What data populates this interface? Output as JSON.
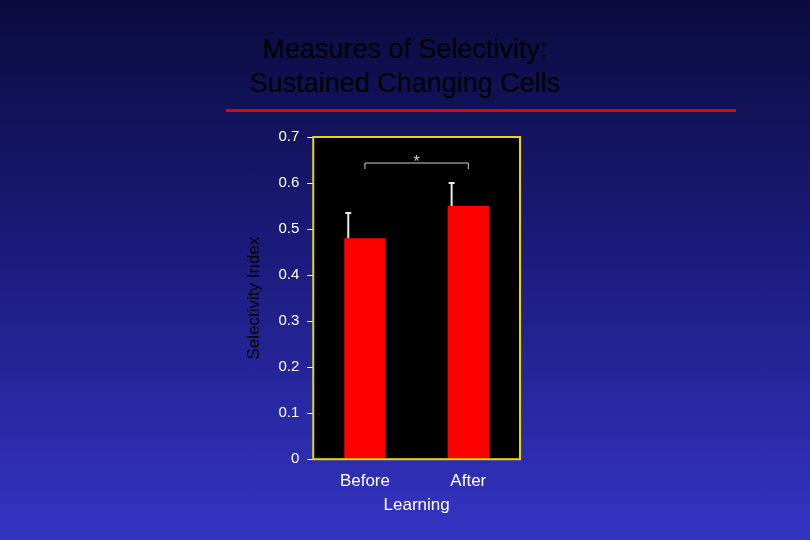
{
  "chart_data": {
    "type": "bar",
    "title": [
      "Measures of Selectivity:",
      "Sustained Changing Cells"
    ],
    "categories": [
      "Before",
      "After"
    ],
    "values": [
      0.48,
      0.55
    ],
    "errors": [
      0.055,
      0.05
    ],
    "color": "#ff0000",
    "y_label": "Selectivity Index",
    "x_label": "Learning",
    "ylim": [
      0,
      0.7
    ],
    "yticks": [
      0,
      0.1,
      0.2,
      0.3,
      0.4,
      0.5,
      0.6,
      0.7
    ],
    "grid": false,
    "annotations": [
      {
        "text": "*",
        "from": "Before",
        "to": "After"
      }
    ]
  }
}
